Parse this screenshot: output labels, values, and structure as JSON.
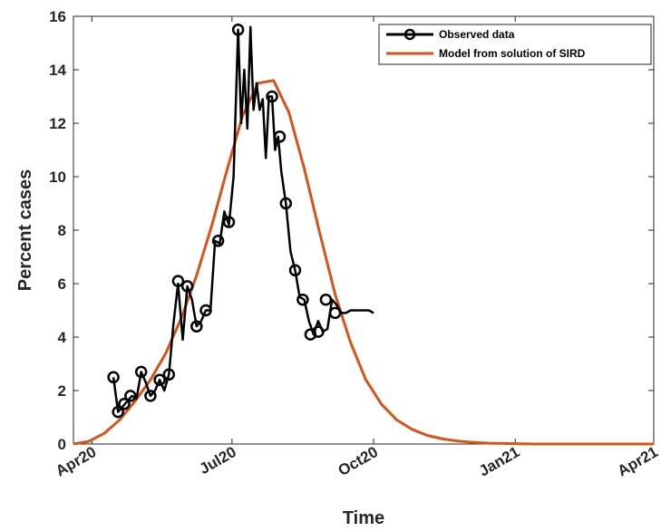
{
  "chart_data": {
    "type": "line",
    "title": "",
    "xlabel": "Time",
    "ylabel": "Percent cases",
    "xlim": [
      "2020-03-20",
      "2021-04-01"
    ],
    "ylim": [
      0,
      16
    ],
    "x_ticks": [
      {
        "date": "2020-04-01",
        "label": "Apr20"
      },
      {
        "date": "2020-07-01",
        "label": "Jul20"
      },
      {
        "date": "2020-10-01",
        "label": "Oct20"
      },
      {
        "date": "2021-01-01",
        "label": "Jan21"
      },
      {
        "date": "2021-04-01",
        "label": "Apr21"
      }
    ],
    "y_ticks": [
      0,
      2,
      4,
      6,
      8,
      10,
      12,
      14,
      16
    ],
    "grid": false,
    "legend": "top-right",
    "series": [
      {
        "name": "Observed data",
        "color": "#000000",
        "marker": "circle",
        "x": [
          "2020-04-15",
          "2020-04-18",
          "2020-04-21",
          "2020-04-24",
          "2020-04-27",
          "2020-04-30",
          "2020-05-03",
          "2020-05-06",
          "2020-05-09",
          "2020-05-12",
          "2020-05-15",
          "2020-05-18",
          "2020-05-21",
          "2020-05-24",
          "2020-05-27",
          "2020-05-30",
          "2020-06-02",
          "2020-06-05",
          "2020-06-08",
          "2020-06-11",
          "2020-06-14",
          "2020-06-17",
          "2020-06-20",
          "2020-06-23",
          "2020-06-26",
          "2020-06-29",
          "2020-07-02",
          "2020-07-05",
          "2020-07-07",
          "2020-07-09",
          "2020-07-11",
          "2020-07-13",
          "2020-07-15",
          "2020-07-17",
          "2020-07-19",
          "2020-07-21",
          "2020-07-23",
          "2020-07-25",
          "2020-07-27",
          "2020-07-29",
          "2020-07-31",
          "2020-08-02",
          "2020-08-05",
          "2020-08-08",
          "2020-08-11",
          "2020-08-14",
          "2020-08-17",
          "2020-08-20",
          "2020-08-23",
          "2020-08-26",
          "2020-08-29",
          "2020-09-01",
          "2020-09-04",
          "2020-09-07",
          "2020-09-10",
          "2020-09-13",
          "2020-09-16",
          "2020-09-19",
          "2020-09-22",
          "2020-09-25",
          "2020-09-28",
          "2020-10-01"
        ],
        "y": [
          2.5,
          1.2,
          1.4,
          1.6,
          1.8,
          1.7,
          2.7,
          2.3,
          1.8,
          2.0,
          2.4,
          2.0,
          2.6,
          4.5,
          6.0,
          3.9,
          5.9,
          5.4,
          4.4,
          4.6,
          5.0,
          5.0,
          7.6,
          7.5,
          8.7,
          8.2,
          10.0,
          15.5,
          12.0,
          14.0,
          11.8,
          15.6,
          12.5,
          13.5,
          12.5,
          12.9,
          10.7,
          13.0,
          13.0,
          11.0,
          11.5,
          10.2,
          9.0,
          7.2,
          6.5,
          5.5,
          5.4,
          4.6,
          4.1,
          4.6,
          4.2,
          4.3,
          5.4,
          5.2,
          4.9,
          4.9,
          5.0,
          5.0,
          5.0,
          5.0,
          5.0,
          4.9
        ],
        "marker_dates": [
          "2020-04-15",
          "2020-04-18",
          "2020-04-22",
          "2020-04-26",
          "2020-05-03",
          "2020-05-09",
          "2020-05-15",
          "2020-05-21",
          "2020-05-27",
          "2020-06-02",
          "2020-06-08",
          "2020-06-14",
          "2020-06-22",
          "2020-06-29",
          "2020-07-05",
          "2020-07-27",
          "2020-08-01",
          "2020-08-05",
          "2020-08-11",
          "2020-08-16",
          "2020-08-21",
          "2020-08-26",
          "2020-08-31",
          "2020-09-06"
        ],
        "marker_values": [
          2.5,
          1.2,
          1.5,
          1.8,
          2.7,
          1.8,
          2.4,
          2.6,
          6.1,
          5.9,
          4.4,
          5.0,
          7.6,
          8.3,
          15.5,
          13.0,
          11.5,
          9.0,
          6.5,
          5.4,
          4.1,
          4.2,
          5.4,
          4.9
        ]
      },
      {
        "name": "Model from solution of SIRD",
        "color": "#d95319",
        "marker": "none",
        "x": [
          "2020-03-20",
          "2020-03-30",
          "2020-04-09",
          "2020-04-19",
          "2020-04-29",
          "2020-05-09",
          "2020-05-19",
          "2020-05-29",
          "2020-06-08",
          "2020-06-18",
          "2020-06-28",
          "2020-07-08",
          "2020-07-18",
          "2020-07-28",
          "2020-08-07",
          "2020-08-17",
          "2020-08-27",
          "2020-09-06",
          "2020-09-16",
          "2020-09-26",
          "2020-10-06",
          "2020-10-16",
          "2020-10-26",
          "2020-11-05",
          "2020-11-15",
          "2020-11-25",
          "2020-12-05",
          "2020-12-15",
          "2020-12-25",
          "2021-01-04",
          "2021-01-14",
          "2021-01-24",
          "2021-02-03",
          "2021-02-13",
          "2021-02-23",
          "2021-03-05",
          "2021-03-15",
          "2021-03-25",
          "2021-04-01"
        ],
        "y": [
          0.0,
          0.1,
          0.4,
          0.9,
          1.6,
          2.4,
          3.4,
          4.7,
          6.3,
          8.2,
          10.3,
          12.3,
          13.5,
          13.6,
          12.4,
          10.3,
          7.9,
          5.6,
          3.8,
          2.4,
          1.5,
          0.9,
          0.55,
          0.32,
          0.19,
          0.11,
          0.06,
          0.03,
          0.02,
          0.01,
          0.0,
          0.0,
          0.0,
          0.0,
          0.0,
          0.0,
          0.0,
          0.0,
          0.0
        ]
      }
    ]
  }
}
